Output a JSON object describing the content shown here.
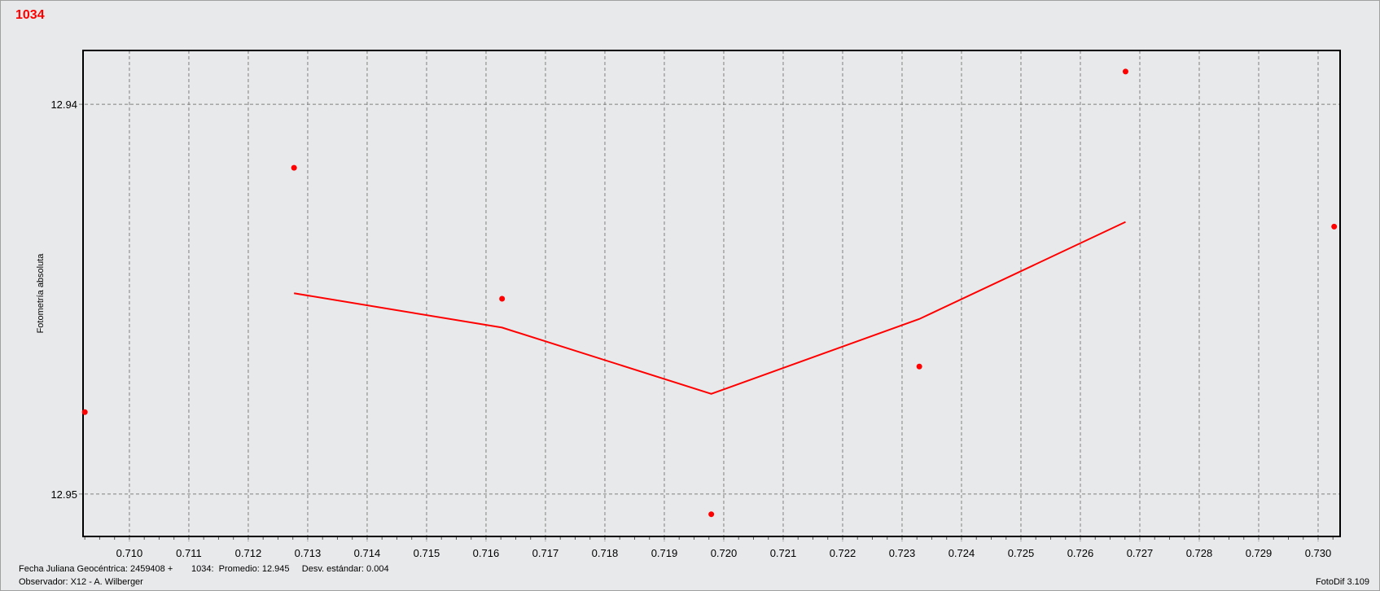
{
  "window": {
    "title": "1034",
    "version": "FotoDif 3.109"
  },
  "footer": {
    "date_label": "Fecha Juliana Geocéntrica: 2459408 +",
    "stats": "1034:  Promedio: 12.945     Desv. estándar: 0.004",
    "observer": "Observador: X12 - A. Wilberger"
  },
  "chart_data": {
    "type": "scatter",
    "title": "1034",
    "xlabel": "",
    "ylabel": "Fotometría absoluta",
    "xlim": [
      0.70922,
      0.73037
    ],
    "ylim": [
      12.95109,
      12.93862
    ],
    "y_inverted": true,
    "grid": true,
    "x_ticks": [
      "0.710",
      "0.711",
      "0.712",
      "0.713",
      "0.714",
      "0.715",
      "0.716",
      "0.717",
      "0.718",
      "0.719",
      "0.720",
      "0.721",
      "0.722",
      "0.723",
      "0.724",
      "0.725",
      "0.726",
      "0.727",
      "0.728",
      "0.729",
      "0.730"
    ],
    "y_ticks": [
      "12.94",
      "12.95"
    ],
    "color": "#ff0000",
    "points": [
      {
        "x": 0.70925,
        "y": 12.9479
      },
      {
        "x": 0.71277,
        "y": 12.94163
      },
      {
        "x": 0.71627,
        "y": 12.94499
      },
      {
        "x": 0.71979,
        "y": 12.95052
      },
      {
        "x": 0.72329,
        "y": 12.94673
      },
      {
        "x": 0.72676,
        "y": 12.93916
      },
      {
        "x": 0.73027,
        "y": 12.94314
      }
    ],
    "line": [
      {
        "x": 0.71277,
        "y": 12.94485
      },
      {
        "x": 0.71627,
        "y": 12.94573
      },
      {
        "x": 0.71979,
        "y": 12.94743
      },
      {
        "x": 0.72329,
        "y": 12.94551
      },
      {
        "x": 0.72676,
        "y": 12.94302
      }
    ]
  }
}
